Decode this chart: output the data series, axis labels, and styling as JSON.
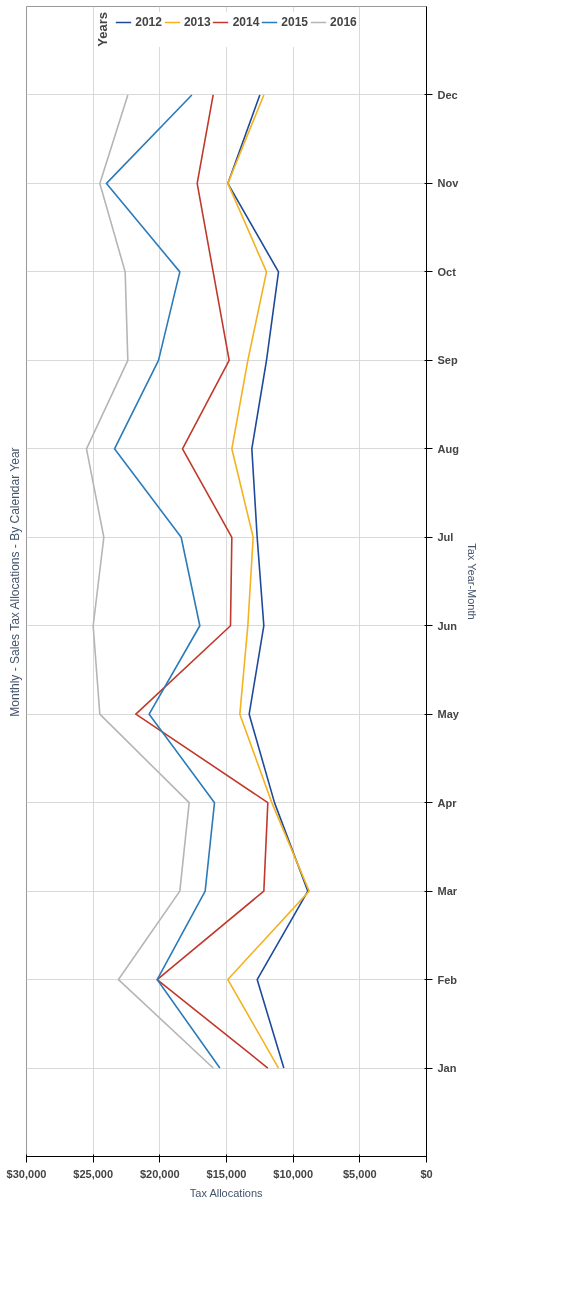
{
  "chart_data": {
    "type": "line",
    "title": "Monthly - Sales Tax Allocations - By Calendar Year",
    "xlabel": "Tax Allocations",
    "ylabel": "Tax Year-Month",
    "legend_title": "Years",
    "categories": [
      "Dec",
      "Nov",
      "Oct",
      "Sep",
      "Aug",
      "Jul",
      "Jun",
      "May",
      "Apr",
      "Mar",
      "Feb",
      "Jan"
    ],
    "series": [
      {
        "name": "2012",
        "color": "#1f4a9a",
        "values": [
          12500,
          14900,
          11100,
          12000,
          13100,
          12700,
          12200,
          13300,
          11400,
          8900,
          12700,
          10700
        ]
      },
      {
        "name": "2013",
        "color": "#f5b120",
        "values": [
          12200,
          14900,
          12000,
          13400,
          14600,
          13000,
          13400,
          14000,
          11600,
          8800,
          14900,
          11100
        ]
      },
      {
        "name": "2014",
        "color": "#c0392b",
        "values": [
          16000,
          17200,
          16000,
          14800,
          18300,
          14600,
          14700,
          21800,
          11900,
          12200,
          20200,
          11900
        ]
      },
      {
        "name": "2015",
        "color": "#2b7bb9",
        "values": [
          17600,
          24000,
          18500,
          20100,
          23400,
          18400,
          17000,
          20800,
          15900,
          16600,
          20200,
          15500
        ]
      },
      {
        "name": "2016",
        "color": "#b5b5b5",
        "values": [
          22400,
          24500,
          22600,
          22400,
          25500,
          24200,
          25000,
          24500,
          17800,
          18500,
          23100,
          16000
        ]
      }
    ],
    "xlim": [
      30000,
      0
    ],
    "xticks": [
      {
        "value": 30000,
        "label": "$30,000"
      },
      {
        "value": 25000,
        "label": "$25,000"
      },
      {
        "value": 20000,
        "label": "$20,000"
      },
      {
        "value": 15000,
        "label": "$15,000"
      },
      {
        "value": 10000,
        "label": "$10,000"
      },
      {
        "value": 5000,
        "label": "$5,000"
      },
      {
        "value": 0,
        "label": "$0"
      }
    ],
    "orientation": "horizontal",
    "grid": true,
    "legend": "top",
    "marker": "none",
    "line_style": "solid"
  }
}
